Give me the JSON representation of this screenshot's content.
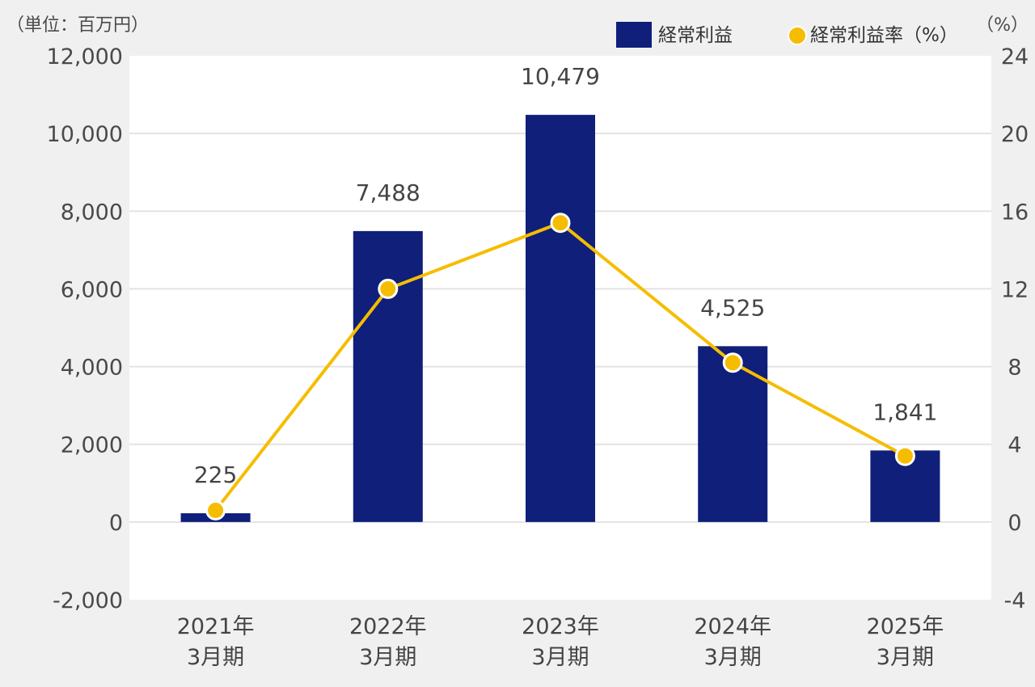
{
  "chart_data": {
    "type": "bar",
    "categories": [
      [
        "2021年",
        "3月期"
      ],
      [
        "2022年",
        "3月期"
      ],
      [
        "2023年",
        "3月期"
      ],
      [
        "2024年",
        "3月期"
      ],
      [
        "2025年",
        "3月期"
      ]
    ],
    "series": [
      {
        "name": "経常利益",
        "type": "bar",
        "axis": "left",
        "values": [
          225,
          7488,
          10479,
          4525,
          1841
        ],
        "labels": [
          "225",
          "7,488",
          "10,479",
          "4,525",
          "1,841"
        ]
      },
      {
        "name": "経常利益率（%）",
        "type": "line",
        "axis": "right",
        "values": [
          0.6,
          12.0,
          15.4,
          8.2,
          3.4
        ]
      }
    ],
    "left_axis": {
      "unit_label": "（単位：百万円）",
      "ylim": [
        -2000,
        12000
      ],
      "ticks": [
        -2000,
        0,
        2000,
        4000,
        6000,
        8000,
        10000,
        12000
      ],
      "tick_labels": [
        "-2,000",
        "0",
        "2,000",
        "4,000",
        "6,000",
        "8,000",
        "10,000",
        "12,000"
      ]
    },
    "right_axis": {
      "unit_label": "（%）",
      "ylim": [
        -4,
        24
      ],
      "ticks": [
        -4,
        0,
        4,
        8,
        12,
        16,
        20,
        24
      ],
      "tick_labels": [
        "-4",
        "0",
        "4",
        "8",
        "12",
        "16",
        "20",
        "24"
      ]
    },
    "grid": true,
    "legend_position": "top-right",
    "colors": {
      "bar": "#0f1f7a",
      "line": "#f5bd00",
      "plot_background": "#ffffff",
      "page_background": "#f0f0f0",
      "grid": "#e3e3e3"
    }
  }
}
